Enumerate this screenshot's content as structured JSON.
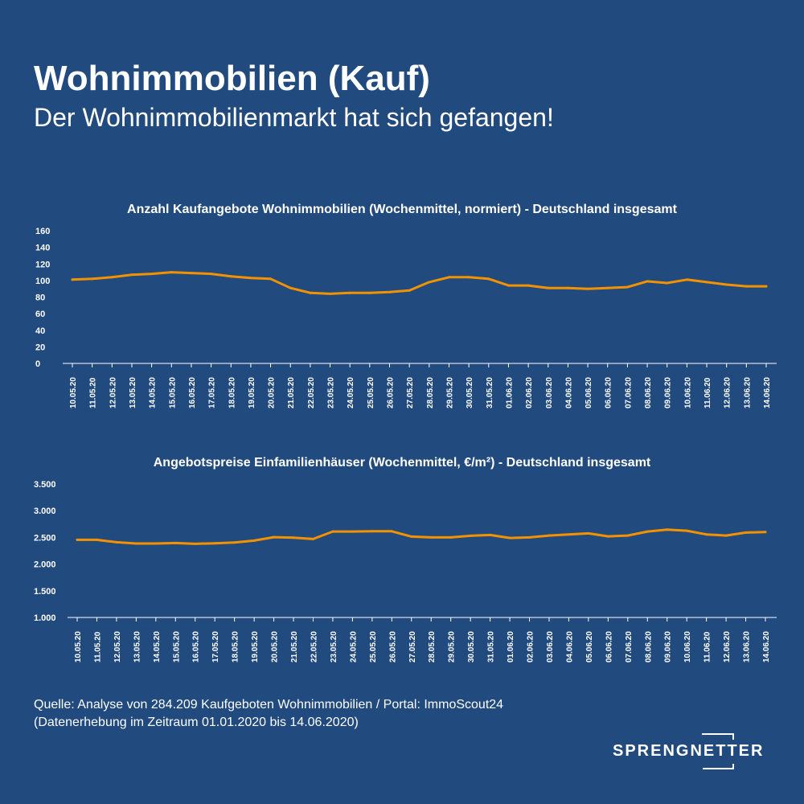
{
  "header": {
    "title": "Wohnimmobilien (Kauf)",
    "subtitle": "Der Wohnimmobilienmarkt hat sich gefangen!"
  },
  "chart_data": [
    {
      "type": "line",
      "title": "Anzahl Kaufangebote Wohnimmobilien (Wochenmittel, normiert) - Deutschland insgesamt",
      "x": [
        "10.05.20",
        "11.05.20",
        "12.05.20",
        "13.05.20",
        "14.05.20",
        "15.05.20",
        "16.05.20",
        "17.05.20",
        "18.05.20",
        "19.05.20",
        "20.05.20",
        "21.05.20",
        "22.05.20",
        "23.05.20",
        "24.05.20",
        "25.05.20",
        "26.05.20",
        "27.05.20",
        "28.05.20",
        "29.05.20",
        "30.05.20",
        "31.05.20",
        "01.06.20",
        "02.06.20",
        "03.06.20",
        "04.06.20",
        "05.06.20",
        "06.06.20",
        "07.06.20",
        "08.06.20",
        "09.06.20",
        "10.06.20",
        "11.06.20",
        "12.06.20",
        "13.06.20",
        "14.06.20"
      ],
      "values": [
        101,
        102,
        104,
        107,
        108,
        110,
        109,
        108,
        105,
        103,
        102,
        91,
        85,
        84,
        85,
        85,
        86,
        88,
        98,
        104,
        104,
        102,
        94,
        94,
        91,
        91,
        90,
        91,
        92,
        99,
        97,
        101,
        98,
        95,
        93,
        93
      ],
      "yticks": [
        "0",
        "20",
        "40",
        "60",
        "80",
        "100",
        "120",
        "140",
        "160"
      ],
      "ylim": [
        0,
        160
      ],
      "color": "#f39200"
    },
    {
      "type": "line",
      "title": "Angebotspreise Einfamilienhäuser (Wochenmittel, €/m²) - Deutschland insgesamt",
      "x": [
        "10.05.20",
        "11.05.20",
        "12.05.20",
        "13.05.20",
        "14.05.20",
        "15.05.20",
        "16.05.20",
        "17.05.20",
        "18.05.20",
        "19.05.20",
        "20.05.20",
        "21.05.20",
        "22.05.20",
        "23.05.20",
        "24.05.20",
        "25.05.20",
        "26.05.20",
        "27.05.20",
        "28.05.20",
        "29.05.20",
        "30.05.20",
        "31.05.20",
        "01.06.20",
        "02.06.20",
        "03.06.20",
        "04.06.20",
        "05.06.20",
        "06.06.20",
        "07.06.20",
        "08.06.20",
        "09.06.20",
        "10.06.20",
        "11.06.20",
        "12.06.20",
        "13.06.20",
        "14.06.20"
      ],
      "values": [
        2455,
        2455,
        2410,
        2385,
        2385,
        2395,
        2380,
        2390,
        2405,
        2440,
        2505,
        2495,
        2470,
        2610,
        2610,
        2615,
        2615,
        2515,
        2500,
        2500,
        2530,
        2545,
        2490,
        2500,
        2535,
        2555,
        2575,
        2520,
        2535,
        2610,
        2645,
        2625,
        2555,
        2535,
        2590,
        2600
      ],
      "yticks": [
        "1.000",
        "1.500",
        "2.000",
        "2.500",
        "3.000",
        "3.500"
      ],
      "ylim": [
        1000,
        3500
      ],
      "color": "#f39200"
    }
  ],
  "source": {
    "line1": "Quelle: Analyse von 284.209 Kaufgeboten Wohnimmobilien / Portal: ImmoScout24",
    "line2": "(Datenerhebung im Zeitraum 01.01.2020 bis 14.06.2020)"
  },
  "logo": {
    "text": "SPRENGNETTER"
  }
}
